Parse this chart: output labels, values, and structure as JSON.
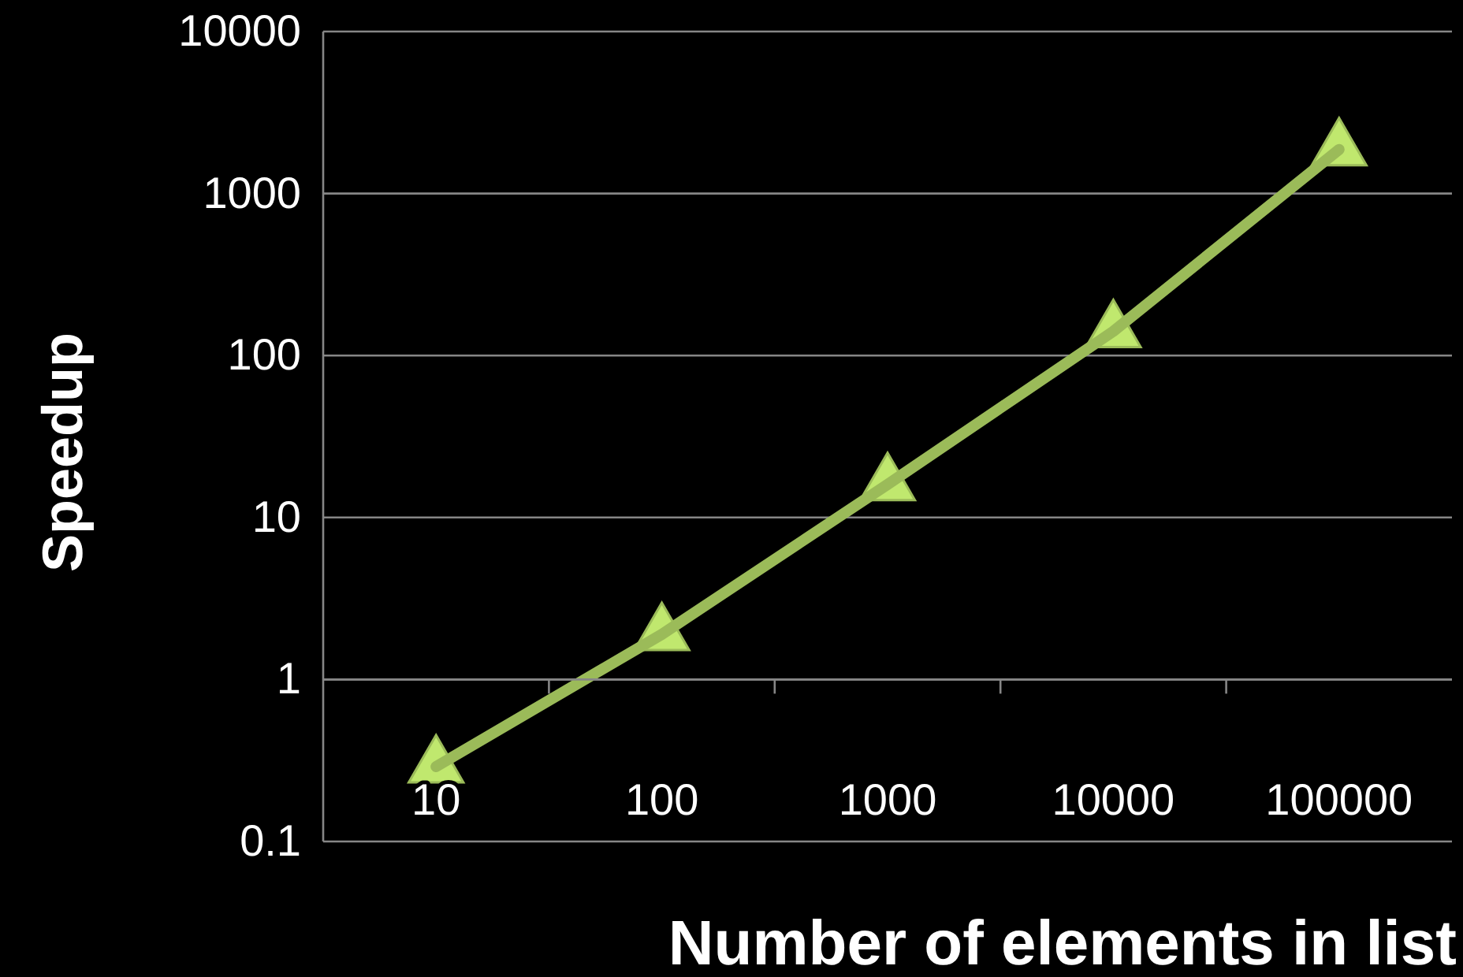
{
  "chart_data": {
    "type": "line",
    "categories": [
      "10",
      "100",
      "1000",
      "10000",
      "100000"
    ],
    "series": [
      {
        "color": "#9bbb59",
        "values": [
          0.29,
          1.9,
          16,
          141,
          1870
        ]
      }
    ],
    "xlabel": "Number of elements in list",
    "ylabel": "Speedup",
    "log": true,
    "ylim": [
      0.1,
      10000
    ],
    "yticks": [
      0.1,
      1,
      10,
      100,
      1000,
      10000
    ],
    "grid": "y",
    "marker": "triangle",
    "line_style": "solid"
  }
}
